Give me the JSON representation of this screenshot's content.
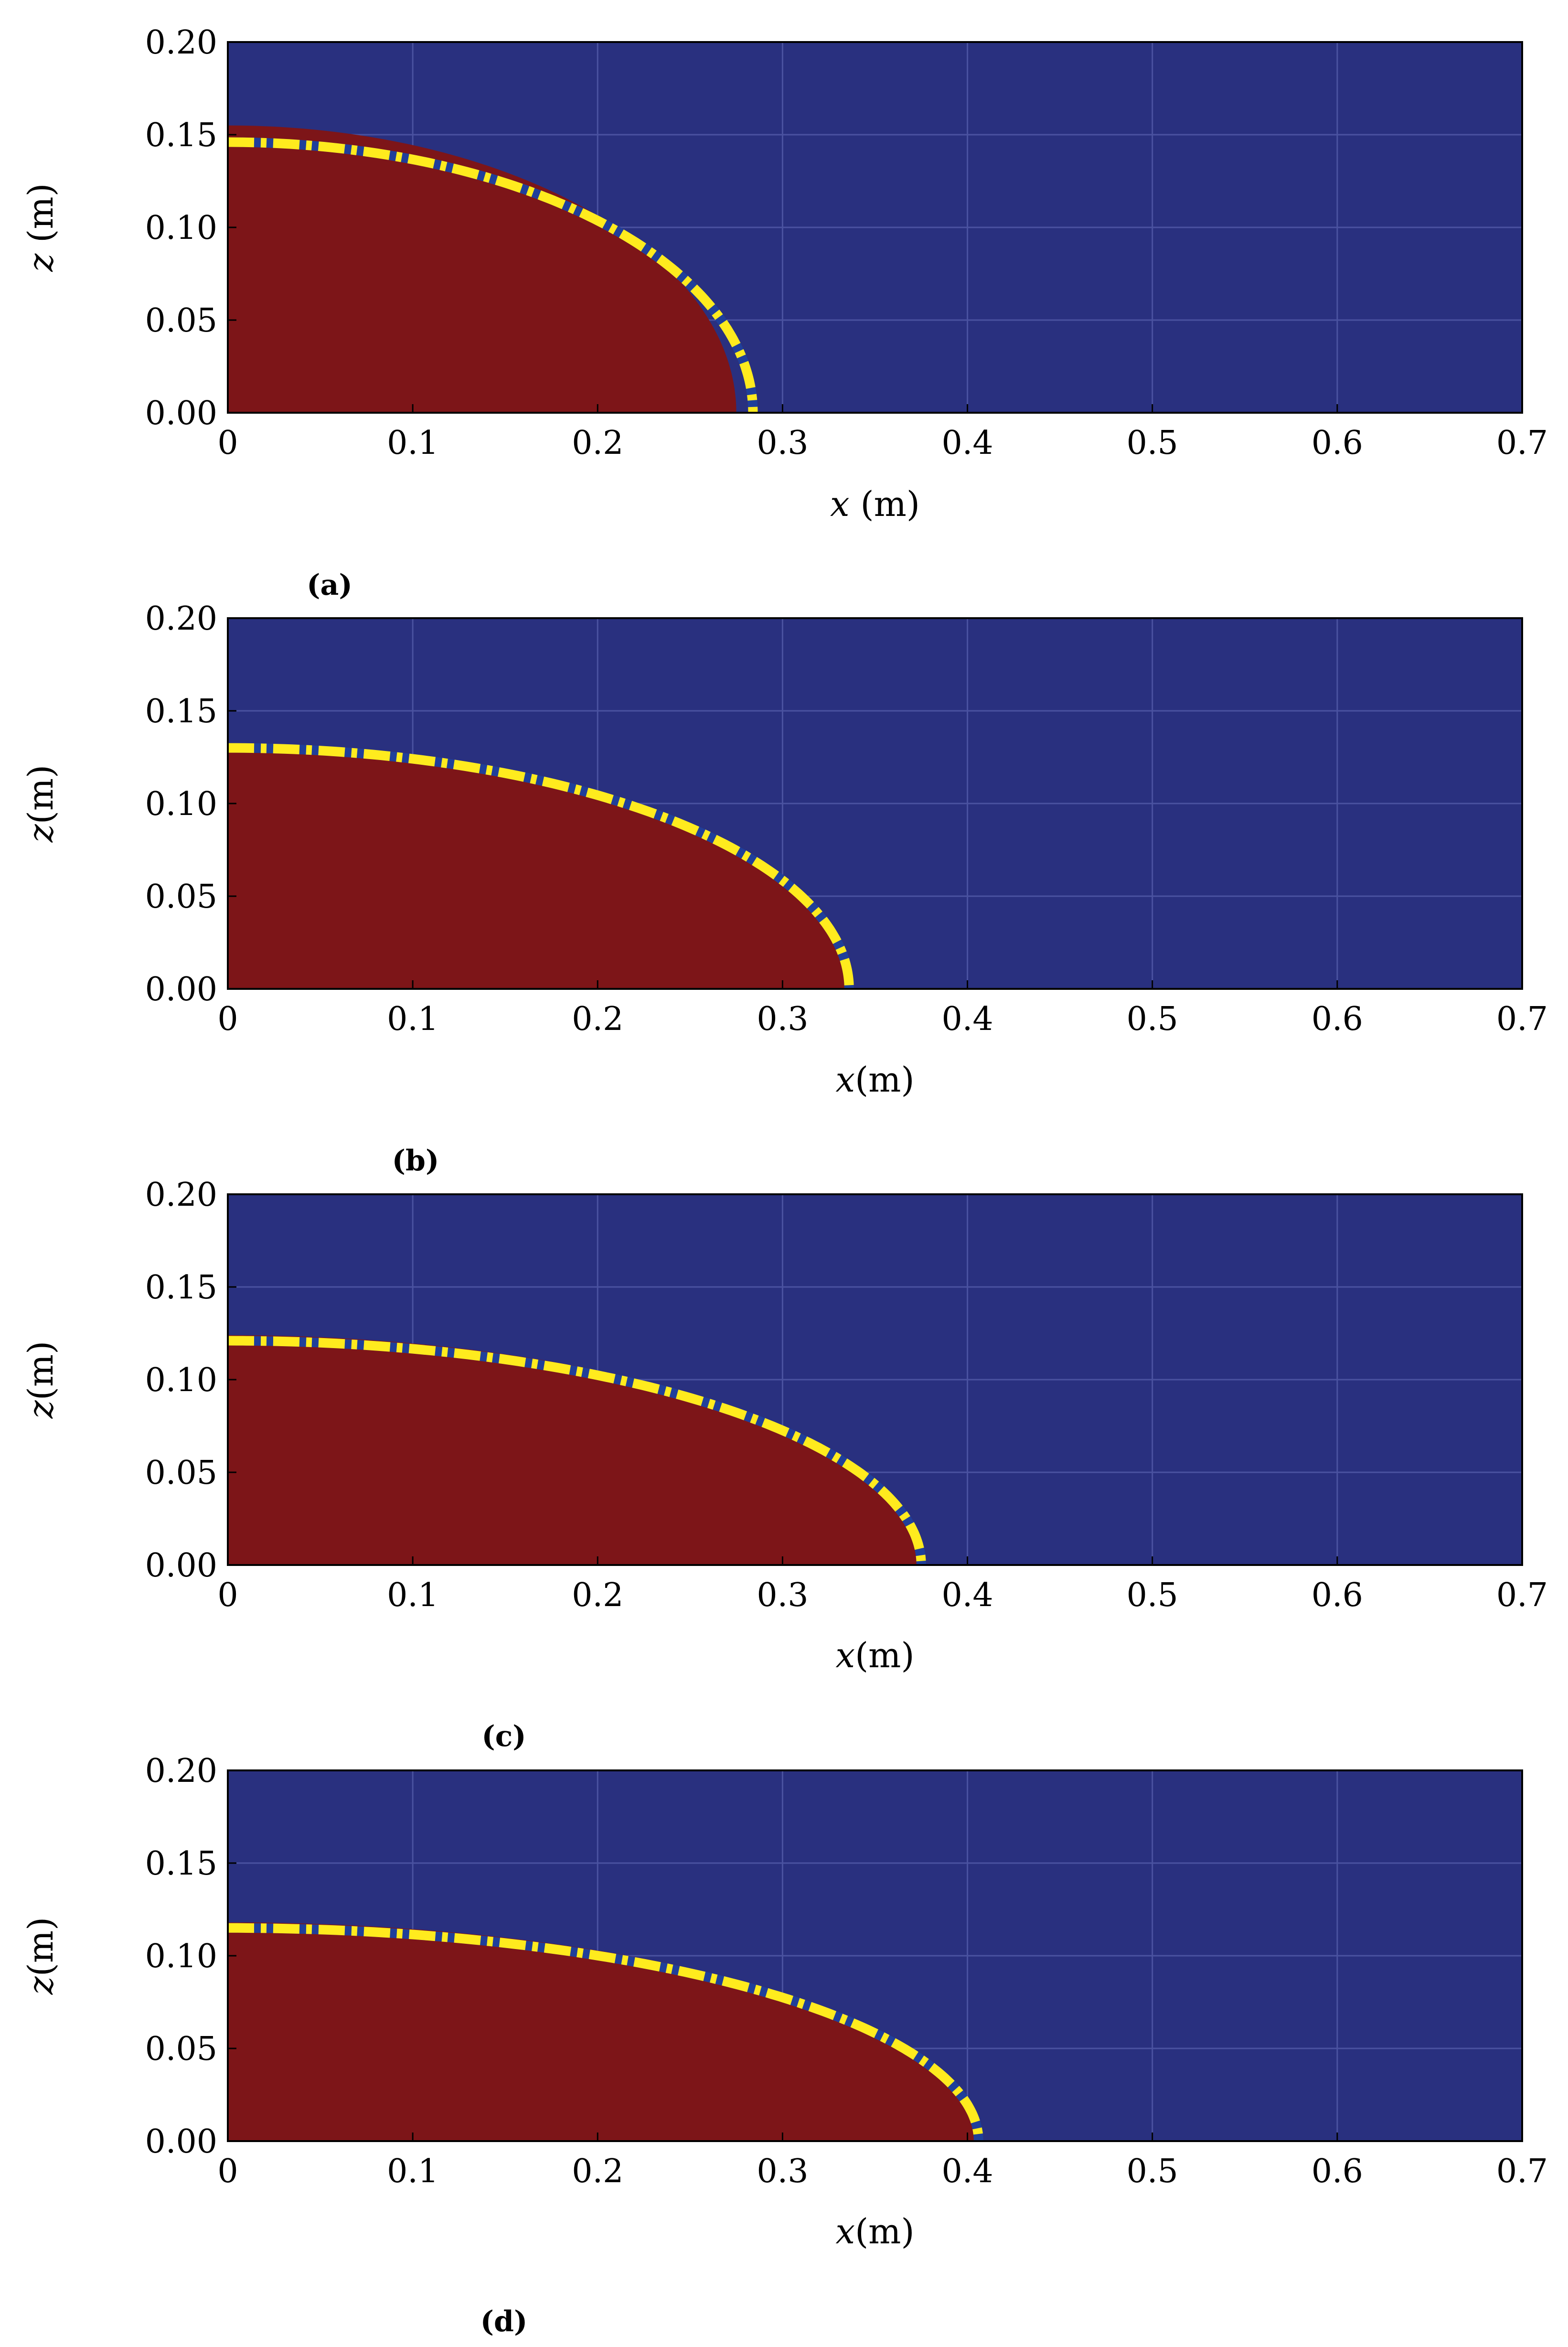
{
  "colors": {
    "background_phase": "#29307f",
    "droplet_phase": "#7d1518",
    "contour": "#ffeb1e",
    "contour_dash": "#1f3f9a",
    "grid": "#4a52a0",
    "axis": "#000000"
  },
  "chart_data": [
    {
      "type": "area",
      "panel_label": "(a)",
      "xlabel_var": "x",
      "xlabel_unit": " (m)",
      "ylabel_var": "z",
      "ylabel_unit": " (m)",
      "xlim": [
        0,
        0.7
      ],
      "ylim": [
        0,
        0.2
      ],
      "x_ticks": [
        "0",
        "0.1",
        "0.2",
        "0.3",
        "0.4",
        "0.5",
        "0.6",
        "0.7"
      ],
      "y_ticks": [
        "0.00",
        "0.05",
        "0.10",
        "0.15",
        "0.20"
      ],
      "x_tick_values": [
        0,
        0.1,
        0.2,
        0.3,
        0.4,
        0.5,
        0.6,
        0.7
      ],
      "y_tick_values": [
        0,
        0.05,
        0.1,
        0.15,
        0.2
      ],
      "grid": true,
      "droplet_region": {
        "x_extent": 0.275,
        "z_height": 0.155
      },
      "contour_curve": {
        "x_extent": 0.284,
        "z_height": 0.146
      }
    },
    {
      "type": "area",
      "panel_label": "(b)",
      "xlabel_var": "x",
      "xlabel_unit": "(m)",
      "ylabel_var": "z",
      "ylabel_unit": "(m)",
      "xlim": [
        0,
        0.7
      ],
      "ylim": [
        0,
        0.2
      ],
      "x_ticks": [
        "0",
        "0.1",
        "0.2",
        "0.3",
        "0.4",
        "0.5",
        "0.6",
        "0.7"
      ],
      "y_ticks": [
        "0.00",
        "0.05",
        "0.10",
        "0.15",
        "0.20"
      ],
      "x_tick_values": [
        0,
        0.1,
        0.2,
        0.3,
        0.4,
        0.5,
        0.6,
        0.7
      ],
      "y_tick_values": [
        0,
        0.05,
        0.1,
        0.15,
        0.2
      ],
      "grid": true,
      "droplet_region": {
        "x_extent": 0.334,
        "z_height": 0.131
      },
      "contour_curve": {
        "x_extent": 0.336,
        "z_height": 0.13
      }
    },
    {
      "type": "area",
      "panel_label": "(c)",
      "xlabel_var": "x",
      "xlabel_unit": "(m)",
      "ylabel_var": "z",
      "ylabel_unit": "(m)",
      "xlim": [
        0,
        0.7
      ],
      "ylim": [
        0,
        0.2
      ],
      "x_ticks": [
        "0",
        "0.1",
        "0.2",
        "0.3",
        "0.4",
        "0.5",
        "0.6",
        "0.7"
      ],
      "y_ticks": [
        "0.00",
        "0.05",
        "0.10",
        "0.15",
        "0.20"
      ],
      "x_tick_values": [
        0,
        0.1,
        0.2,
        0.3,
        0.4,
        0.5,
        0.6,
        0.7
      ],
      "y_tick_values": [
        0,
        0.05,
        0.1,
        0.15,
        0.2
      ],
      "grid": true,
      "droplet_region": {
        "x_extent": 0.376,
        "z_height": 0.124
      },
      "contour_curve": {
        "x_extent": 0.375,
        "z_height": 0.121
      }
    },
    {
      "type": "area",
      "panel_label": "(d)",
      "xlabel_var": "x",
      "xlabel_unit": "(m)",
      "ylabel_var": "z",
      "ylabel_unit": "(m)",
      "xlim": [
        0,
        0.7
      ],
      "ylim": [
        0,
        0.2
      ],
      "x_ticks": [
        "0",
        "0.1",
        "0.2",
        "0.3",
        "0.4",
        "0.5",
        "0.6",
        "0.7"
      ],
      "y_ticks": [
        "0.00",
        "0.05",
        "0.10",
        "0.15",
        "0.20"
      ],
      "x_tick_values": [
        0,
        0.1,
        0.2,
        0.3,
        0.4,
        0.5,
        0.6,
        0.7
      ],
      "y_tick_values": [
        0,
        0.05,
        0.1,
        0.15,
        0.2
      ],
      "grid": true,
      "droplet_region": {
        "x_extent": 0.408,
        "z_height": 0.118
      },
      "contour_curve": {
        "x_extent": 0.406,
        "z_height": 0.115
      }
    }
  ]
}
